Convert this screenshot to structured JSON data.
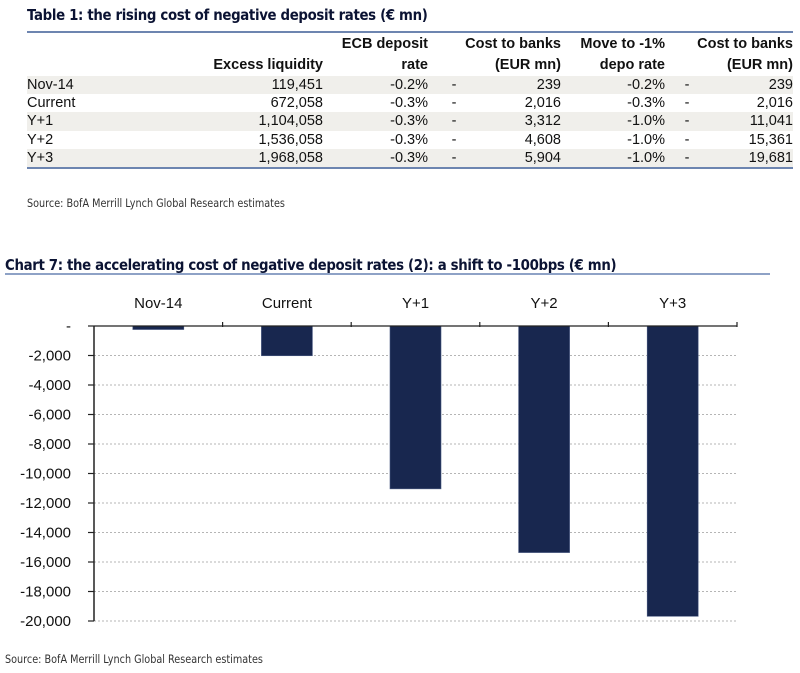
{
  "table1": {
    "title": "Table 1: the rising cost of negative deposit rates (€ mn)",
    "headers": {
      "excess_liquidity": "Excess liquidity",
      "ecb_rate_line1": "ECB deposit",
      "ecb_rate_line2": "rate",
      "cost1_line1": "Cost to banks",
      "cost1_line2": "(EUR mn)",
      "move_line1": "Move to -1%",
      "move_line2": "depo rate",
      "cost2_line1": "Cost to banks",
      "cost2_line2": "(EUR mn)"
    },
    "rows": [
      {
        "label": "Nov-14",
        "excess_liquidity": "119,451",
        "ecb_rate": "-0.2%",
        "dash1": "-",
        "cost1": "239",
        "move_rate": "-0.2%",
        "dash2": "-",
        "cost2": "239"
      },
      {
        "label": "Current",
        "excess_liquidity": "672,058",
        "ecb_rate": "-0.3%",
        "dash1": "-",
        "cost1": "2,016",
        "move_rate": "-0.3%",
        "dash2": "-",
        "cost2": "2,016"
      },
      {
        "label": "Y+1",
        "excess_liquidity": "1,104,058",
        "ecb_rate": "-0.3%",
        "dash1": "-",
        "cost1": "3,312",
        "move_rate": "-1.0%",
        "dash2": "-",
        "cost2": "11,041"
      },
      {
        "label": "Y+2",
        "excess_liquidity": "1,536,058",
        "ecb_rate": "-0.3%",
        "dash1": "-",
        "cost1": "4,608",
        "move_rate": "-1.0%",
        "dash2": "-",
        "cost2": "15,361"
      },
      {
        "label": "Y+3",
        "excess_liquidity": "1,968,058",
        "ecb_rate": "-0.3%",
        "dash1": "-",
        "cost1": "5,904",
        "move_rate": "-1.0%",
        "dash2": "-",
        "cost2": "19,681"
      }
    ],
    "source": "Source: BofA Merrill Lynch Global Research estimates"
  },
  "chart7": {
    "source": "Source: BofA Merrill Lynch Global Research estimates"
  },
  "colors": {
    "bar": "#18274f",
    "rule": "#6d85b0",
    "shade": "#f0efeb"
  },
  "chart_data": {
    "type": "bar",
    "title": "Chart 7: the accelerating cost of negative deposit rates (2): a shift to -100bps  (€ mn)",
    "categories": [
      "Nov-14",
      "Current",
      "Y+1",
      "Y+2",
      "Y+3"
    ],
    "values": [
      -239,
      -2016,
      -11041,
      -15361,
      -19681
    ],
    "xlabel": "",
    "ylabel": "",
    "ylim": [
      -20000,
      0
    ],
    "yticks": [
      0,
      -2000,
      -4000,
      -6000,
      -8000,
      -10000,
      -12000,
      -14000,
      -16000,
      -18000,
      -20000
    ],
    "ytick_labels": [
      "-",
      "-2,000",
      "-4,000",
      "-6,000",
      "-8,000",
      "-10,000",
      "-12,000",
      "-14,000",
      "-16,000",
      "-18,000",
      "-20,000"
    ],
    "category_axis_position": "top",
    "grid": "horizontal dotted",
    "legend": "none"
  }
}
